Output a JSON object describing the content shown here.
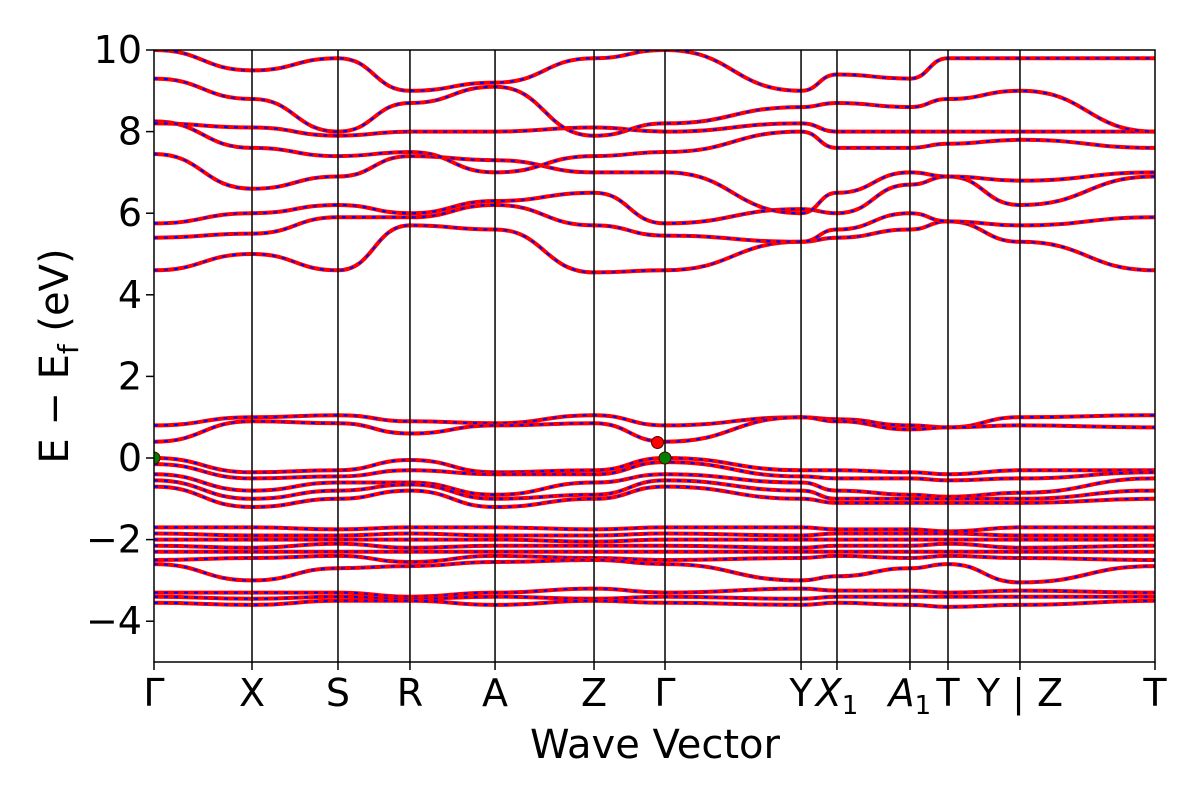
{
  "chart_data": {
    "type": "line",
    "title": "",
    "xlabel": "Wave Vector",
    "ylabel_main": "E − E",
    "ylabel_sub": "f",
    "ylabel_tail": " (eV)",
    "ylim": [
      -5,
      10
    ],
    "yticks": [
      -4,
      -2,
      0,
      2,
      4,
      6,
      8,
      10
    ],
    "ytick_labels": [
      "−4",
      "−2",
      "0",
      "2",
      "4",
      "6",
      "8",
      "10"
    ],
    "xlim": [
      0,
      1
    ],
    "kpath": [
      {
        "label": "Γ",
        "x": 0.0
      },
      {
        "label": "X",
        "x": 0.0979
      },
      {
        "label": "S",
        "x": 0.1838
      },
      {
        "label": "R",
        "x": 0.2557
      },
      {
        "label": "A",
        "x": 0.3407
      },
      {
        "label": "Z",
        "x": 0.4396
      },
      {
        "label": "Γ",
        "x": 0.5105
      },
      {
        "label": "Y",
        "x": 0.6464
      },
      {
        "label": "X",
        "sub": "1",
        "x": 0.6823
      },
      {
        "label": "A",
        "sub": "1",
        "x": 0.7552
      },
      {
        "label": "T",
        "x": 0.7932
      },
      {
        "label": "Y | Z",
        "x": 0.8651
      },
      {
        "label": "T",
        "x": 1.0
      }
    ],
    "band_colors": {
      "primary": "#ff0000",
      "secondary": "#0000ff",
      "markers": "#008000",
      "marker_red": "#ff0000"
    },
    "line_style": "red solid with blue dashed overlay",
    "extrema": [
      {
        "type": "vbm",
        "x": 0.0,
        "y": 0.0,
        "color": "#008000"
      },
      {
        "type": "vbm",
        "x": 0.5105,
        "y": 0.0,
        "color": "#008000"
      },
      {
        "type": "cbm",
        "x": 0.503,
        "y": 0.38,
        "color": "#ff0000"
      }
    ],
    "conduction_bands_anchor_energies": [
      [
        4.6,
        5.0,
        4.6,
        5.7,
        5.6,
        4.55,
        4.6,
        5.3,
        5.4,
        5.6,
        5.8,
        5.3,
        4.6,
        5.8
      ],
      [
        5.4,
        5.5,
        5.9,
        5.9,
        6.2,
        5.7,
        5.45,
        5.3,
        5.6,
        6.0,
        5.8,
        5.7,
        5.9,
        5.75
      ],
      [
        5.75,
        6.0,
        6.2,
        6.0,
        6.3,
        6.5,
        5.75,
        6.1,
        6.0,
        6.7,
        6.9,
        6.2,
        6.9,
        6.9
      ],
      [
        7.45,
        6.6,
        6.9,
        7.4,
        7.3,
        7.0,
        7.0,
        6.0,
        6.5,
        7.0,
        6.9,
        6.8,
        7.0,
        6.9
      ],
      [
        8.25,
        7.6,
        7.4,
        7.5,
        7.0,
        7.4,
        7.5,
        8.0,
        7.6,
        7.6,
        7.7,
        7.8,
        7.6,
        7.7
      ],
      [
        8.2,
        8.1,
        7.9,
        8.0,
        8.0,
        8.1,
        8.0,
        8.2,
        8.0,
        8.0,
        8.0,
        8.0,
        8.0,
        7.75
      ],
      [
        9.3,
        8.8,
        8.0,
        8.7,
        9.1,
        7.9,
        8.2,
        8.6,
        8.7,
        8.6,
        8.8,
        9.0,
        8.0,
        8.8
      ],
      [
        10.0,
        9.5,
        9.8,
        9.0,
        9.2,
        9.8,
        10.0,
        9.0,
        9.4,
        9.3,
        9.8,
        9.8,
        9.8,
        9.8
      ]
    ],
    "valence_bands_anchor_energies": [
      [
        0.8,
        1.0,
        1.05,
        0.9,
        0.85,
        1.05,
        0.8,
        1.0,
        0.95,
        0.8,
        0.75,
        1.0,
        1.05,
        0.75
      ],
      [
        0.4,
        0.9,
        0.85,
        0.6,
        0.8,
        0.85,
        0.4,
        1.0,
        0.9,
        0.7,
        0.75,
        0.8,
        0.75,
        0.75
      ],
      [
        0.0,
        -0.35,
        -0.3,
        -0.05,
        -0.35,
        -0.3,
        0.0,
        -0.3,
        -0.3,
        -0.35,
        -0.4,
        -0.3,
        -0.3,
        -0.45
      ],
      [
        -0.15,
        -0.5,
        -0.45,
        -0.3,
        -0.4,
        -0.4,
        -0.1,
        -0.45,
        -0.5,
        -0.5,
        -0.55,
        -0.5,
        -0.35,
        -0.5
      ],
      [
        -0.4,
        -0.8,
        -0.6,
        -0.6,
        -0.9,
        -0.6,
        -0.4,
        -0.6,
        -0.8,
        -0.9,
        -0.95,
        -0.85,
        -0.5,
        -0.95
      ],
      [
        -0.55,
        -1.0,
        -0.8,
        -0.65,
        -1.0,
        -0.9,
        -0.55,
        -0.8,
        -1.0,
        -1.0,
        -1.0,
        -1.0,
        -0.8,
        -1.0
      ],
      [
        -0.7,
        -1.2,
        -1.0,
        -0.8,
        -1.2,
        -1.0,
        -0.7,
        -1.0,
        -1.1,
        -1.1,
        -1.1,
        -1.1,
        -1.0,
        -1.2
      ],
      [
        -1.7,
        -1.7,
        -1.75,
        -1.7,
        -1.7,
        -1.75,
        -1.7,
        -1.7,
        -1.75,
        -1.75,
        -1.8,
        -1.7,
        -1.7,
        -1.75
      ],
      [
        -1.85,
        -1.9,
        -1.9,
        -1.85,
        -1.9,
        -1.9,
        -1.85,
        -1.9,
        -1.85,
        -1.85,
        -1.85,
        -1.9,
        -1.9,
        -1.85
      ],
      [
        -2.0,
        -2.0,
        -2.0,
        -2.0,
        -2.0,
        -2.05,
        -2.0,
        -2.0,
        -2.0,
        -2.0,
        -2.0,
        -2.0,
        -2.0,
        -2.0
      ],
      [
        -2.15,
        -2.2,
        -2.1,
        -2.2,
        -2.15,
        -2.15,
        -2.15,
        -2.2,
        -2.15,
        -2.15,
        -2.1,
        -2.2,
        -2.15,
        -2.15
      ],
      [
        -2.3,
        -2.3,
        -2.3,
        -2.3,
        -2.3,
        -2.3,
        -2.3,
        -2.3,
        -2.3,
        -2.3,
        -2.3,
        -2.3,
        -2.3,
        -2.25
      ],
      [
        -2.5,
        -2.45,
        -2.4,
        -2.55,
        -2.4,
        -2.45,
        -2.5,
        -2.45,
        -2.4,
        -2.45,
        -2.4,
        -2.45,
        -2.5,
        -2.45
      ],
      [
        -2.6,
        -3.0,
        -2.7,
        -2.65,
        -2.55,
        -2.5,
        -2.6,
        -3.0,
        -2.9,
        -2.7,
        -2.6,
        -3.05,
        -2.65,
        -2.5
      ],
      [
        -3.3,
        -3.3,
        -3.3,
        -3.4,
        -3.3,
        -3.2,
        -3.3,
        -3.2,
        -3.25,
        -3.25,
        -3.3,
        -3.25,
        -3.3,
        -3.3
      ],
      [
        -3.4,
        -3.45,
        -3.4,
        -3.45,
        -3.4,
        -3.45,
        -3.4,
        -3.45,
        -3.4,
        -3.4,
        -3.4,
        -3.4,
        -3.4,
        -3.4
      ],
      [
        -3.55,
        -3.6,
        -3.5,
        -3.5,
        -3.6,
        -3.5,
        -3.55,
        -3.6,
        -3.55,
        -3.6,
        -3.65,
        -3.6,
        -3.5,
        -3.7
      ]
    ],
    "grid": false,
    "legend": "none"
  }
}
